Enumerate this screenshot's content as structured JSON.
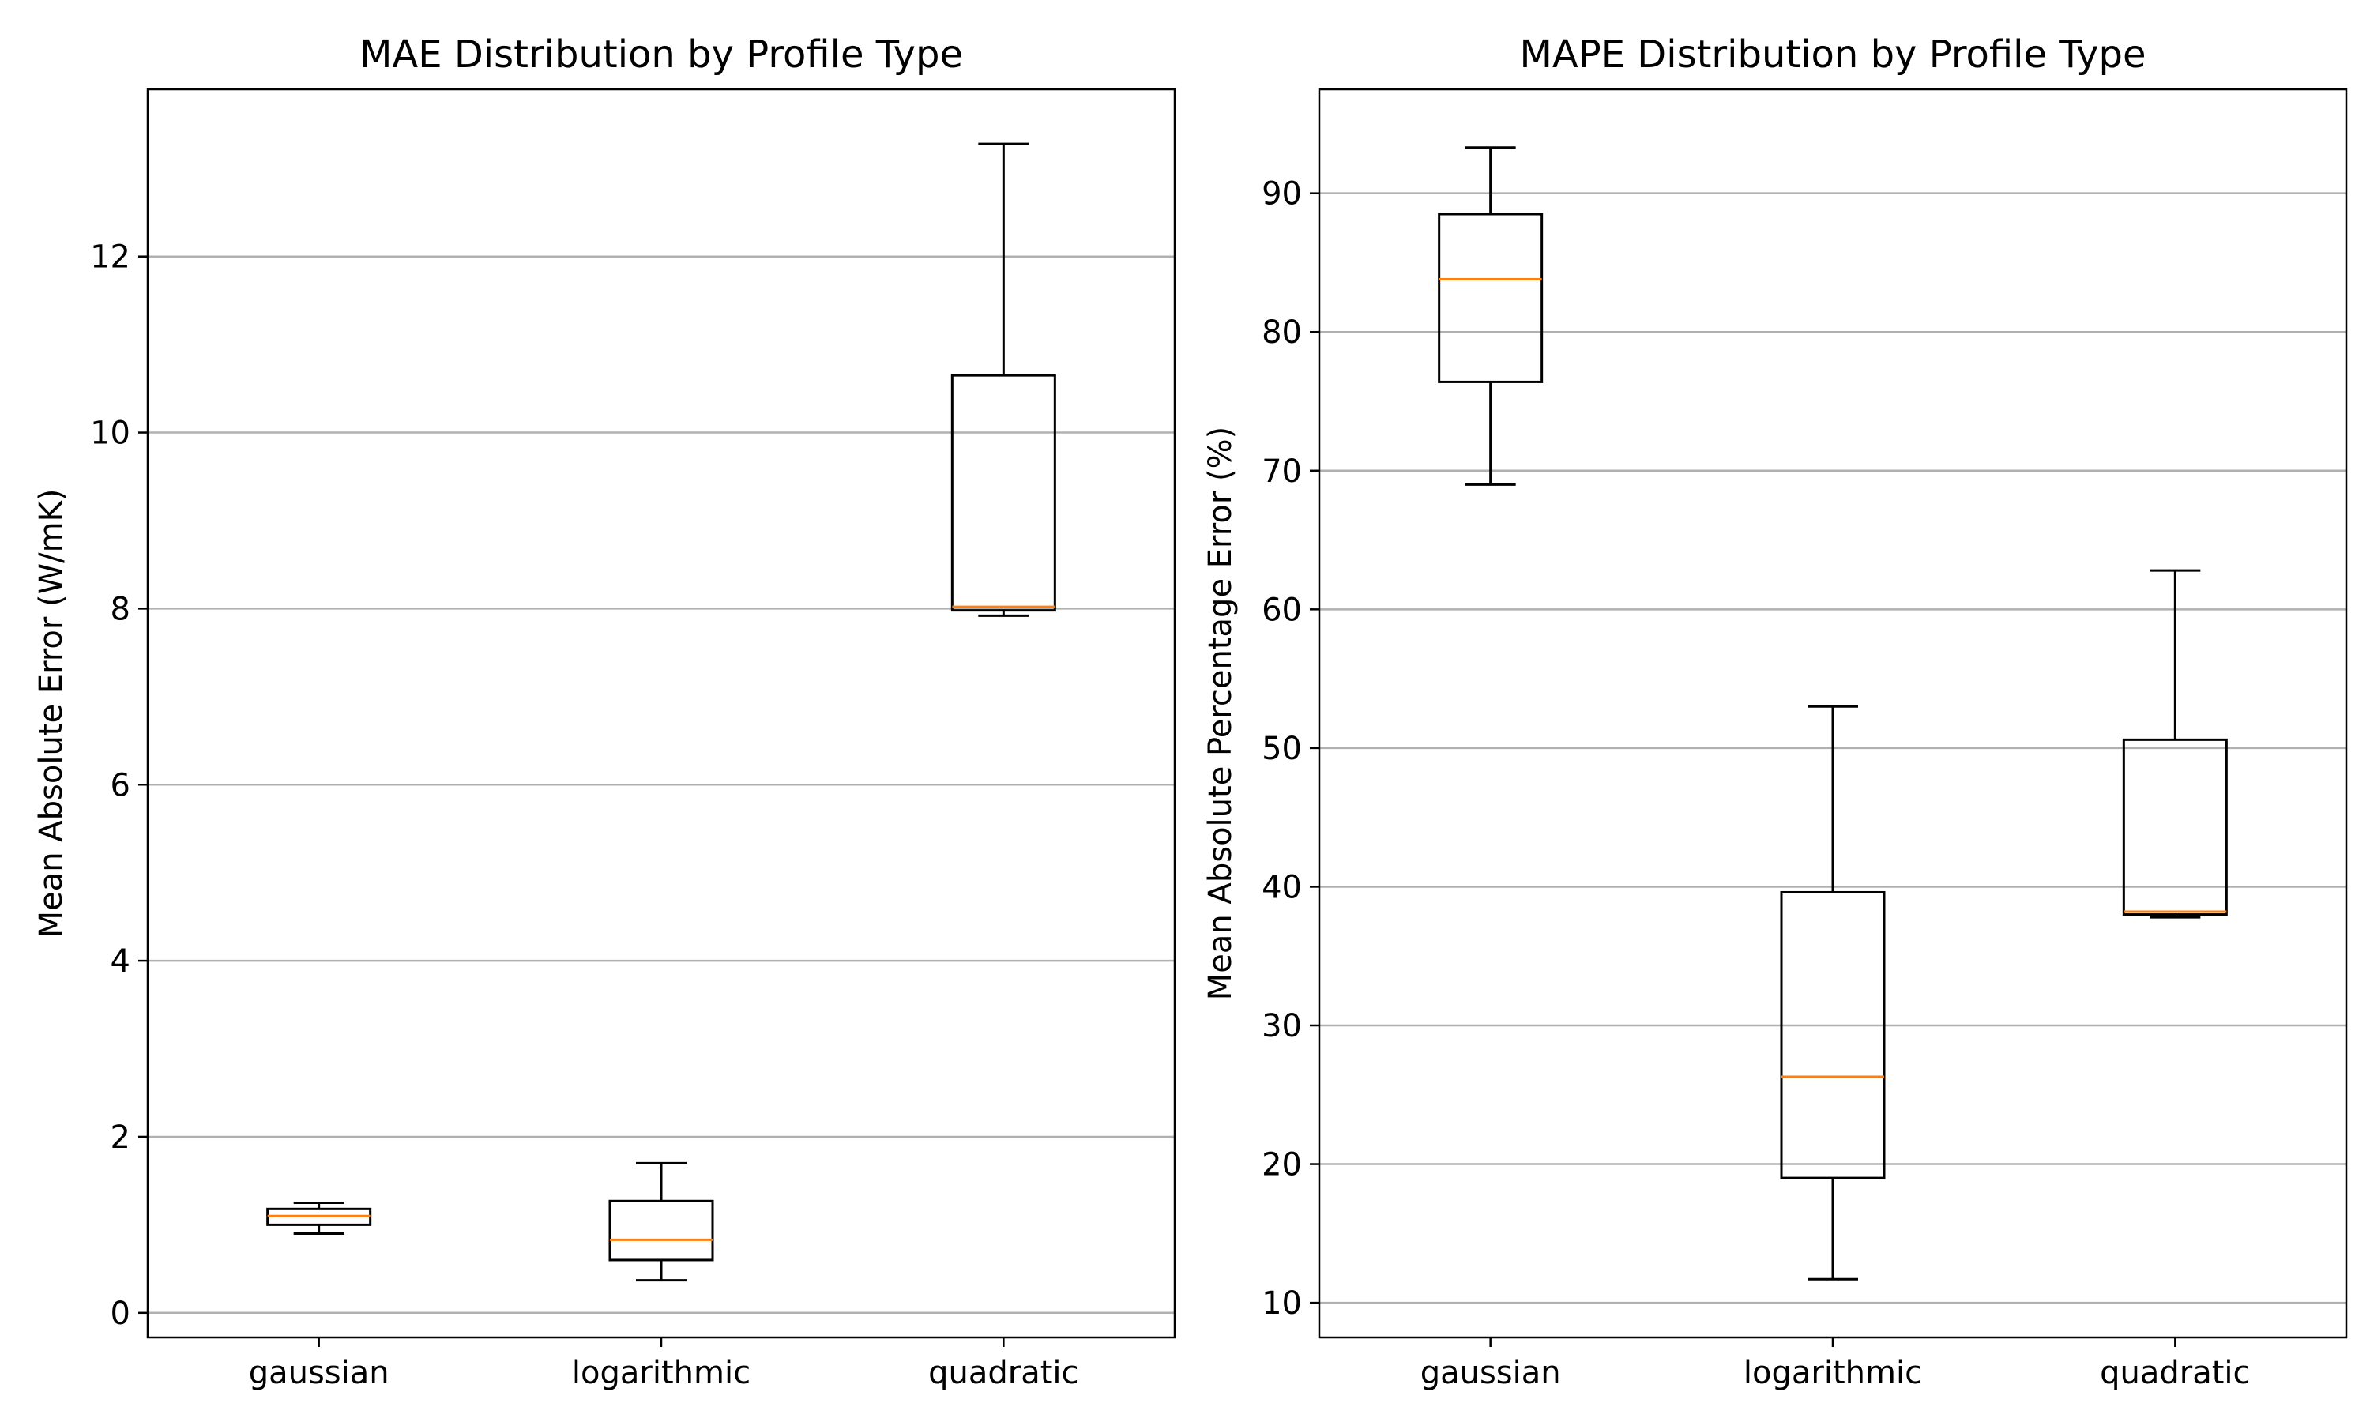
{
  "chart_data": [
    {
      "type": "box",
      "title": "MAE Distribution by Profile Type",
      "xlabel": "",
      "ylabel": "Mean Absolute Error (W/mK)",
      "categories": [
        "gaussian",
        "logarithmic",
        "quadratic"
      ],
      "ylim": [
        -0.28,
        13.9
      ],
      "yticks": [
        0,
        2,
        4,
        6,
        8,
        10,
        12
      ],
      "grid": "y",
      "boxes": [
        {
          "category": "gaussian",
          "whisker_low": 0.9,
          "q1": 1.0,
          "median": 1.1,
          "q3": 1.18,
          "whisker_high": 1.25
        },
        {
          "category": "logarithmic",
          "whisker_low": 0.37,
          "q1": 0.6,
          "median": 0.83,
          "q3": 1.27,
          "whisker_high": 1.7
        },
        {
          "category": "quadratic",
          "whisker_low": 7.92,
          "q1": 7.98,
          "median": 8.02,
          "q3": 10.65,
          "whisker_high": 13.28
        }
      ]
    },
    {
      "type": "box",
      "title": "MAPE Distribution by Profile Type",
      "xlabel": "",
      "ylabel": "Mean Absolute Percentage Error (%)",
      "categories": [
        "gaussian",
        "logarithmic",
        "quadratic"
      ],
      "ylim": [
        7.5,
        97.5
      ],
      "yticks": [
        10,
        20,
        30,
        40,
        50,
        60,
        70,
        80,
        90
      ],
      "grid": "y",
      "boxes": [
        {
          "category": "gaussian",
          "whisker_low": 69.0,
          "q1": 76.4,
          "median": 83.8,
          "q3": 88.5,
          "whisker_high": 93.3
        },
        {
          "category": "logarithmic",
          "whisker_low": 11.7,
          "q1": 19.0,
          "median": 26.3,
          "q3": 39.6,
          "whisker_high": 53.0
        },
        {
          "category": "quadratic",
          "whisker_low": 37.8,
          "q1": 38.0,
          "median": 38.2,
          "q3": 50.6,
          "whisker_high": 62.8
        }
      ]
    }
  ],
  "colors": {
    "median": "#ff7f0e",
    "box": "#000000",
    "grid": "#b0b0b0"
  }
}
